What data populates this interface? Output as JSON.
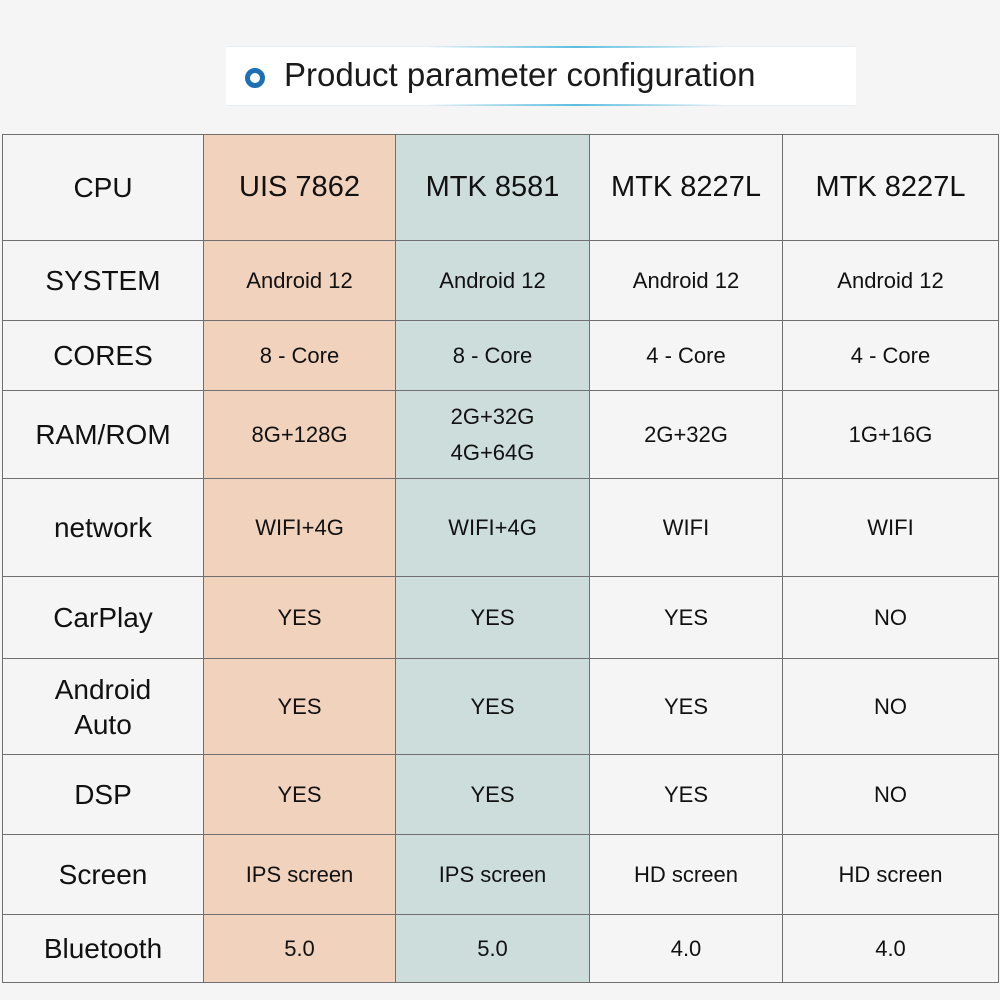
{
  "title": "Product parameter configuration",
  "colors": {
    "uis_column": "#f0d2bd",
    "mtk8581_column": "#cddddc",
    "title_dot": "#1f6fb5"
  },
  "table": {
    "rows": [
      {
        "label": "CPU",
        "values": [
          "UIS 7862",
          "MTK 8581",
          "MTK 8227L",
          "MTK 8227L"
        ]
      },
      {
        "label": "SYSTEM",
        "values": [
          "Android 12",
          "Android 12",
          "Android 12",
          "Android 12"
        ]
      },
      {
        "label": "CORES",
        "values": [
          "8 - Core",
          "8 - Core",
          "4 - Core",
          "4 - Core"
        ]
      },
      {
        "label": "RAM/ROM",
        "values": [
          "8G+128G",
          "2G+32G\n4G+64G",
          "2G+32G",
          "1G+16G"
        ]
      },
      {
        "label": "network",
        "values": [
          "WIFI+4G",
          "WIFI+4G",
          "WIFI",
          "WIFI"
        ]
      },
      {
        "label": "CarPlay",
        "values": [
          "YES",
          "YES",
          "YES",
          "NO"
        ]
      },
      {
        "label": "Android\nAuto",
        "values": [
          "YES",
          "YES",
          "YES",
          "NO"
        ]
      },
      {
        "label": "DSP",
        "values": [
          "YES",
          "YES",
          "YES",
          "NO"
        ]
      },
      {
        "label": "Screen",
        "values": [
          "IPS screen",
          "IPS screen",
          "HD screen",
          "HD screen"
        ]
      },
      {
        "label": "Bluetooth",
        "values": [
          "5.0",
          "5.0",
          "4.0",
          "4.0"
        ]
      }
    ]
  }
}
